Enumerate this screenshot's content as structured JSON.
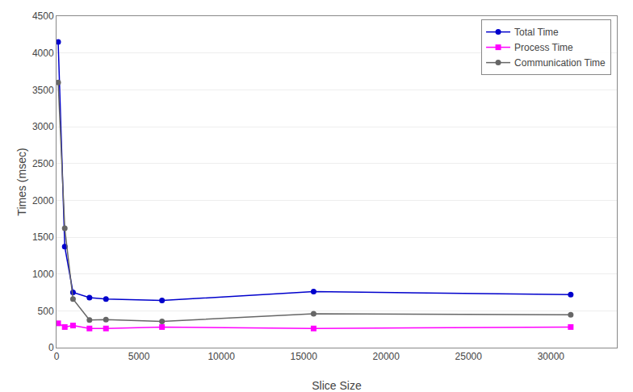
{
  "chart_data": {
    "type": "line",
    "x": [
      100,
      500,
      1000,
      2000,
      3000,
      6400,
      15600,
      31200
    ],
    "series": [
      {
        "name": "Total Time",
        "color": "#0000cc",
        "marker": "circle",
        "values": [
          4150,
          1370,
          750,
          680,
          660,
          640,
          760,
          720
        ]
      },
      {
        "name": "Process Time",
        "color": "#ff00ff",
        "marker": "square",
        "values": [
          330,
          280,
          300,
          260,
          260,
          280,
          260,
          280
        ]
      },
      {
        "name": "Communication Time",
        "color": "#666666",
        "marker": "circle",
        "values": [
          3600,
          1620,
          660,
          375,
          380,
          355,
          460,
          445
        ]
      }
    ],
    "xlabel": "Slice Size",
    "ylabel": "Times (msec)",
    "xlim": [
      0,
      34000
    ],
    "xticks": [
      0,
      5000,
      10000,
      15000,
      20000,
      25000,
      30000
    ],
    "ylim": [
      0,
      4500
    ],
    "yticks": [
      0,
      500,
      1000,
      1500,
      2000,
      2500,
      3000,
      3500,
      4000,
      4500
    ],
    "grid": "y",
    "legend": "upper right"
  }
}
